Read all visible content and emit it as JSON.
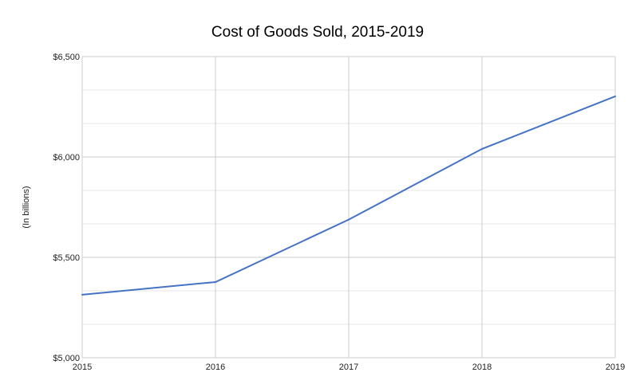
{
  "chart_data": {
    "type": "line",
    "title": "Cost of Goods Sold, 2015-2019",
    "xlabel": "",
    "ylabel": "(In billions)",
    "x": [
      "2015",
      "2016",
      "2017",
      "2018",
      "2019"
    ],
    "series": [
      {
        "name": "Cost of Goods Sold",
        "values": [
          5314,
          5377,
          5688,
          6040,
          6302
        ],
        "color": "#4472c4"
      }
    ],
    "ylim": [
      5000,
      6500
    ],
    "yticks": [
      5000,
      5500,
      6000,
      6500
    ],
    "ytick_labels": [
      "$5,000",
      "$5,500",
      "$6,000",
      "$6,500"
    ],
    "grid": true,
    "legend": "none"
  }
}
